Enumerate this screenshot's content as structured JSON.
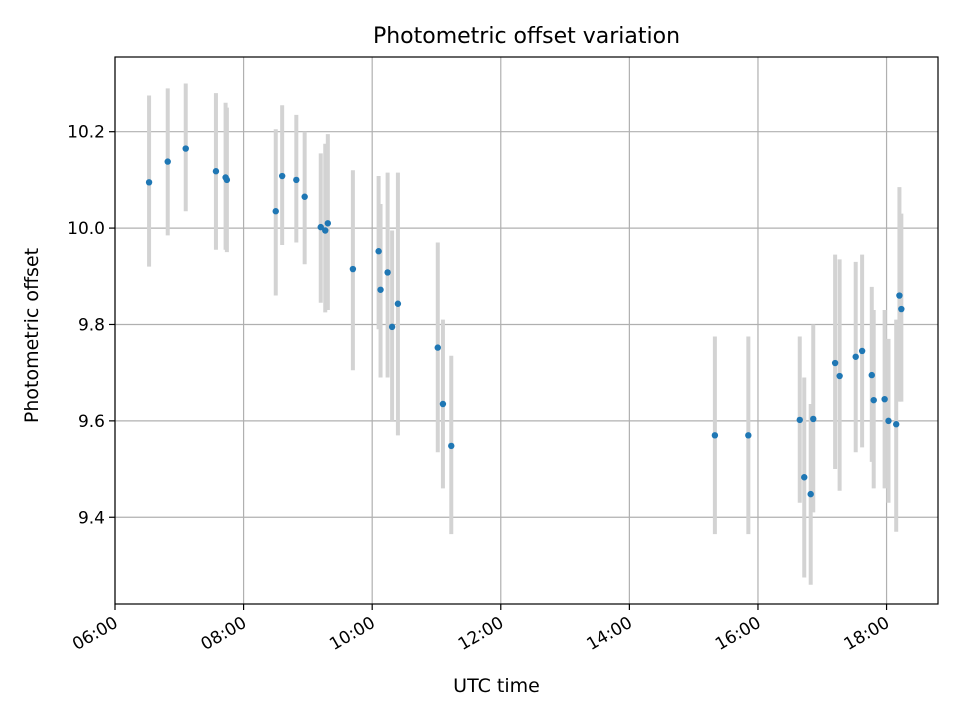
{
  "chart_data": {
    "type": "scatter",
    "title": "Photometric offset variation",
    "xlabel": "UTC time",
    "ylabel": "Photometric offset",
    "x_unit": "hours",
    "xlim": [
      6.0,
      18.8
    ],
    "ylim": [
      9.22,
      10.355
    ],
    "x_ticks": [
      6,
      8,
      10,
      12,
      14,
      16,
      18
    ],
    "x_tick_labels": [
      "06:00",
      "08:00",
      "10:00",
      "12:00",
      "14:00",
      "16:00",
      "18:00"
    ],
    "y_ticks": [
      9.4,
      9.6,
      9.8,
      10.0,
      10.2
    ],
    "y_tick_labels": [
      "9.4",
      "9.6",
      "9.8",
      "10.0",
      "10.2"
    ],
    "grid": true,
    "legend": "none",
    "marker_color": "#1f77b4",
    "errorbar_color": "#d3d3d3",
    "points": [
      {
        "x": 6.53,
        "y": 10.095,
        "lo": 9.92,
        "hi": 10.275
      },
      {
        "x": 6.82,
        "y": 10.138,
        "lo": 9.985,
        "hi": 10.29
      },
      {
        "x": 7.1,
        "y": 10.165,
        "lo": 10.035,
        "hi": 10.3
      },
      {
        "x": 7.57,
        "y": 10.118,
        "lo": 9.955,
        "hi": 10.28
      },
      {
        "x": 7.72,
        "y": 10.105,
        "lo": 9.955,
        "hi": 10.26
      },
      {
        "x": 7.74,
        "y": 10.1,
        "lo": 9.95,
        "hi": 10.25
      },
      {
        "x": 8.5,
        "y": 10.035,
        "lo": 9.86,
        "hi": 10.205
      },
      {
        "x": 8.6,
        "y": 10.108,
        "lo": 9.965,
        "hi": 10.255
      },
      {
        "x": 8.82,
        "y": 10.1,
        "lo": 9.97,
        "hi": 10.235
      },
      {
        "x": 8.95,
        "y": 10.065,
        "lo": 9.925,
        "hi": 10.2
      },
      {
        "x": 9.2,
        "y": 10.002,
        "lo": 9.845,
        "hi": 10.155
      },
      {
        "x": 9.27,
        "y": 9.995,
        "lo": 9.825,
        "hi": 10.175
      },
      {
        "x": 9.31,
        "y": 10.01,
        "lo": 9.83,
        "hi": 10.195
      },
      {
        "x": 9.7,
        "y": 9.915,
        "lo": 9.705,
        "hi": 10.12
      },
      {
        "x": 10.1,
        "y": 9.952,
        "lo": 9.79,
        "hi": 10.108
      },
      {
        "x": 10.13,
        "y": 9.872,
        "lo": 9.69,
        "hi": 10.05
      },
      {
        "x": 10.24,
        "y": 9.908,
        "lo": 9.69,
        "hi": 10.115
      },
      {
        "x": 10.31,
        "y": 9.795,
        "lo": 9.6,
        "hi": 9.995
      },
      {
        "x": 10.4,
        "y": 9.843,
        "lo": 9.57,
        "hi": 10.115
      },
      {
        "x": 11.02,
        "y": 9.752,
        "lo": 9.535,
        "hi": 9.97
      },
      {
        "x": 11.1,
        "y": 9.635,
        "lo": 9.46,
        "hi": 9.81
      },
      {
        "x": 11.23,
        "y": 9.548,
        "lo": 9.365,
        "hi": 9.735
      },
      {
        "x": 15.33,
        "y": 9.57,
        "lo": 9.365,
        "hi": 9.775
      },
      {
        "x": 15.85,
        "y": 9.57,
        "lo": 9.365,
        "hi": 9.775
      },
      {
        "x": 16.65,
        "y": 9.602,
        "lo": 9.43,
        "hi": 9.775
      },
      {
        "x": 16.72,
        "y": 9.483,
        "lo": 9.275,
        "hi": 9.69
      },
      {
        "x": 16.82,
        "y": 9.448,
        "lo": 9.26,
        "hi": 9.635
      },
      {
        "x": 16.86,
        "y": 9.604,
        "lo": 9.41,
        "hi": 9.8
      },
      {
        "x": 17.2,
        "y": 9.72,
        "lo": 9.5,
        "hi": 9.945
      },
      {
        "x": 17.27,
        "y": 9.693,
        "lo": 9.455,
        "hi": 9.935
      },
      {
        "x": 17.52,
        "y": 9.733,
        "lo": 9.535,
        "hi": 9.93
      },
      {
        "x": 17.62,
        "y": 9.745,
        "lo": 9.545,
        "hi": 9.945
      },
      {
        "x": 17.77,
        "y": 9.695,
        "lo": 9.515,
        "hi": 9.878
      },
      {
        "x": 17.8,
        "y": 9.643,
        "lo": 9.46,
        "hi": 9.83
      },
      {
        "x": 17.97,
        "y": 9.645,
        "lo": 9.46,
        "hi": 9.83
      },
      {
        "x": 18.03,
        "y": 9.6,
        "lo": 9.43,
        "hi": 9.77
      },
      {
        "x": 18.15,
        "y": 9.593,
        "lo": 9.37,
        "hi": 9.81
      },
      {
        "x": 18.2,
        "y": 9.86,
        "lo": 9.64,
        "hi": 10.085
      },
      {
        "x": 18.23,
        "y": 9.832,
        "lo": 9.64,
        "hi": 10.03
      }
    ]
  }
}
